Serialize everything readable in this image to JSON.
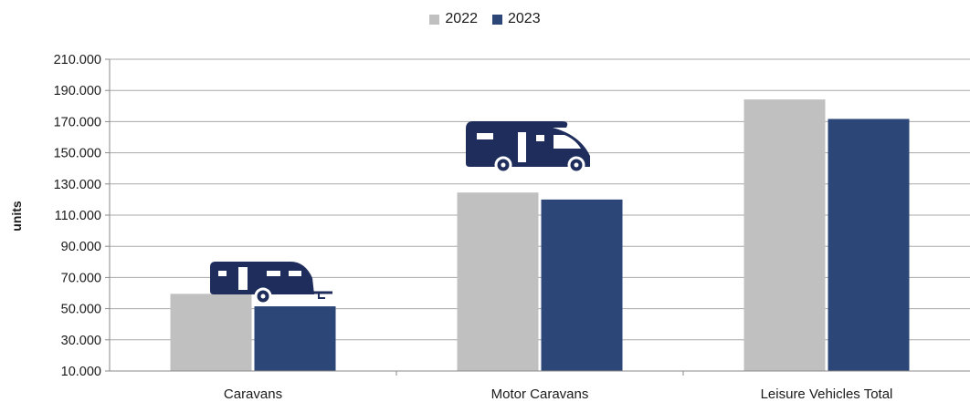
{
  "chart_data": {
    "type": "bar",
    "categories": [
      "Caravans",
      "Motor Caravans",
      "Leisure Vehicles Total"
    ],
    "series": [
      {
        "name": "2022",
        "color": "#c0c0c0",
        "values": [
          59500,
          124500,
          184200
        ]
      },
      {
        "name": "2023",
        "color": "#2c4677",
        "values": [
          51500,
          120000,
          171700
        ]
      }
    ],
    "ylabel": "units",
    "ylim": [
      10000,
      210000
    ],
    "yticks": [
      "10.000",
      "30.000",
      "50.000",
      "70.000",
      "90.000",
      "110.000",
      "130.000",
      "150.000",
      "170.000",
      "190.000",
      "210.000"
    ],
    "grid": true,
    "legend": "top-center",
    "icons": [
      "caravan-icon",
      "motorhome-icon"
    ],
    "icon_color": "#1f2d5c"
  }
}
